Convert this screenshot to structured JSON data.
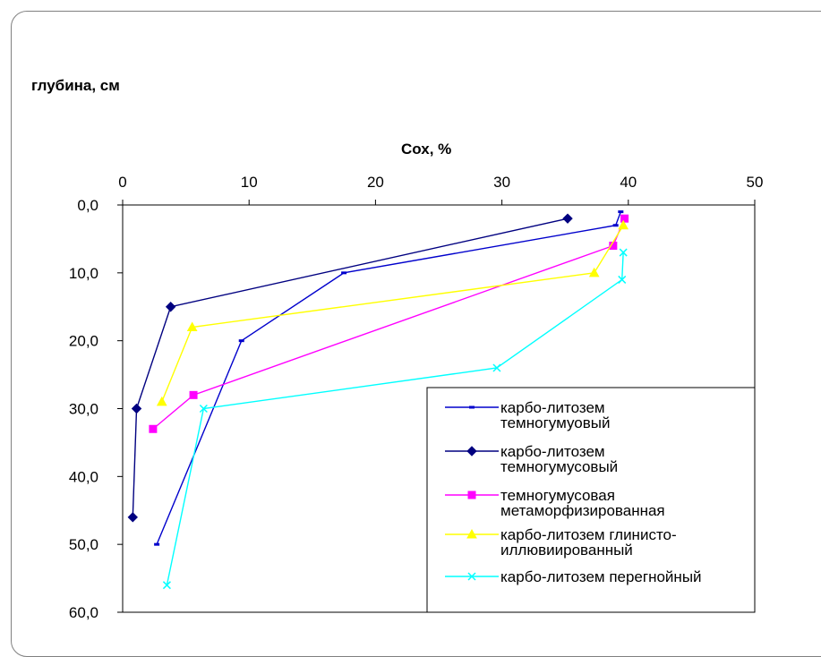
{
  "chart_data": {
    "type": "line",
    "xlabel": "Сох, %",
    "ylabel": "глубина, см",
    "xlim": [
      0,
      50
    ],
    "ylim": [
      0,
      60
    ],
    "y_inverted": true,
    "x_axis_position": "top",
    "x_ticks": [
      "0",
      "10",
      "20",
      "30",
      "40",
      "50"
    ],
    "y_ticks": [
      "0,0",
      "10,0",
      "20,0",
      "30,0",
      "40,0",
      "50,0",
      "60,0"
    ],
    "grid": false,
    "legend_position": "bottom-right",
    "series": [
      {
        "name": "карбо-литозем темногумуовый",
        "legend_lines": [
          "карбо-литозем",
          "темногумуовый"
        ],
        "color": "#0000CC",
        "marker": "dash",
        "points": [
          [
            39.4,
            1
          ],
          [
            39.0,
            3
          ],
          [
            17.5,
            10
          ],
          [
            9.4,
            20
          ],
          [
            2.7,
            50
          ]
        ]
      },
      {
        "name": "карбо-литозем темногумусовый",
        "legend_lines": [
          "карбо-литозем",
          "темногумусовый"
        ],
        "color": "#000080",
        "marker": "diamond",
        "points": [
          [
            35.2,
            2
          ],
          [
            3.8,
            15
          ],
          [
            1.1,
            30
          ],
          [
            0.8,
            46
          ]
        ]
      },
      {
        "name": "темногумусовая метаморфизированная",
        "legend_lines": [
          "темногумусовая",
          "метаморфизированная"
        ],
        "color": "#FF00FF",
        "marker": "square",
        "points": [
          [
            39.7,
            2
          ],
          [
            38.8,
            6
          ],
          [
            5.6,
            28
          ],
          [
            2.4,
            33
          ]
        ]
      },
      {
        "name": "карбо-литозем глинисто-иллювиированный",
        "legend_lines": [
          "карбо-литозем глинисто-",
          "иллювиированный"
        ],
        "color": "#FFFF00",
        "marker": "triangle",
        "points": [
          [
            39.6,
            3
          ],
          [
            37.3,
            10
          ],
          [
            5.5,
            18
          ],
          [
            3.1,
            29
          ]
        ]
      },
      {
        "name": "карбо-литозем перегнойный",
        "legend_lines": [
          "карбо-литозем перегнойный"
        ],
        "color": "#00FFFF",
        "marker": "x",
        "points": [
          [
            39.6,
            7
          ],
          [
            39.5,
            11
          ],
          [
            29.6,
            24
          ],
          [
            6.4,
            30
          ],
          [
            3.5,
            56
          ]
        ]
      }
    ]
  }
}
